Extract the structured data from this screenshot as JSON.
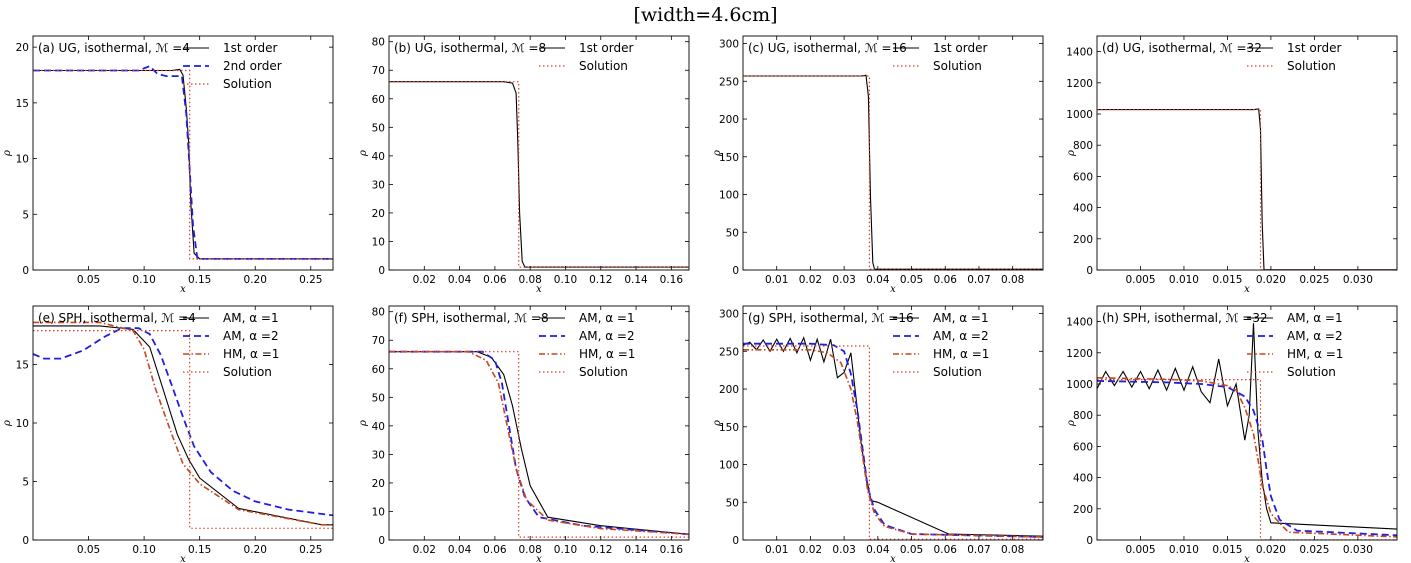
{
  "page_header": "[width=4.6cm]",
  "chart_data": [
    {
      "type": "line",
      "title": "(a) UG, isothermal, ℳ =4",
      "xlabel": "x",
      "ylabel": "ρ",
      "xlim": [
        0,
        0.27
      ],
      "ylim": [
        0,
        21
      ],
      "xticks": [
        0.05,
        0.1,
        0.15,
        0.2,
        0.25
      ],
      "xtick_labels": [
        "0.05",
        "0.10",
        "0.15",
        "0.20",
        "0.25"
      ],
      "yticks": [
        0,
        5,
        10,
        15,
        20
      ],
      "ytick_labels": [
        "0",
        "5",
        "10",
        "15",
        "20"
      ],
      "legend_position": "top-right",
      "series": [
        {
          "name": "1st order",
          "color": "#000000",
          "dash": "solid",
          "x": [
            0,
            0.1,
            0.125,
            0.132,
            0.135,
            0.138,
            0.14,
            0.142,
            0.145,
            0.15,
            0.27
          ],
          "y": [
            17.9,
            17.9,
            17.9,
            18.0,
            17.5,
            14.5,
            11.5,
            6.0,
            1.5,
            1.0,
            1.0
          ]
        },
        {
          "name": "2nd order",
          "color": "#1f1fe0",
          "dash": "dashed",
          "x": [
            0,
            0.095,
            0.105,
            0.112,
            0.12,
            0.128,
            0.134,
            0.138,
            0.141,
            0.144,
            0.148,
            0.27
          ],
          "y": [
            17.9,
            17.9,
            18.3,
            17.6,
            17.4,
            17.4,
            17.4,
            14.0,
            9.0,
            4.0,
            1.0,
            1.0
          ]
        },
        {
          "name": "Solution",
          "color": "#e03c28",
          "dash": "dotted",
          "x": [
            0,
            0.141,
            0.141,
            0.27
          ],
          "y": [
            17.9,
            17.9,
            1.0,
            1.0
          ]
        }
      ]
    },
    {
      "type": "line",
      "title": "(b) UG, isothermal, ℳ =8",
      "xlabel": "x",
      "ylabel": "ρ",
      "xlim": [
        0,
        0.17
      ],
      "ylim": [
        0,
        82
      ],
      "xticks": [
        0.02,
        0.04,
        0.06,
        0.08,
        0.1,
        0.12,
        0.14,
        0.16
      ],
      "xtick_labels": [
        "0.02",
        "0.04",
        "0.06",
        "0.08",
        "0.10",
        "0.12",
        "0.14",
        "0.16"
      ],
      "yticks": [
        0,
        10,
        20,
        30,
        40,
        50,
        60,
        70,
        80
      ],
      "ytick_labels": [
        "0",
        "10",
        "20",
        "30",
        "40",
        "50",
        "60",
        "70",
        "80"
      ],
      "legend_position": "top-right",
      "series": [
        {
          "name": "1st order",
          "color": "#000000",
          "dash": "solid",
          "x": [
            0,
            0.065,
            0.07,
            0.072,
            0.073,
            0.074,
            0.0755,
            0.077,
            0.17
          ],
          "y": [
            66,
            66,
            65.5,
            62,
            45,
            20,
            3,
            1,
            1
          ]
        },
        {
          "name": "Solution",
          "color": "#e03c28",
          "dash": "dotted",
          "x": [
            0,
            0.0735,
            0.0735,
            0.17
          ],
          "y": [
            66,
            66,
            1,
            1
          ]
        }
      ]
    },
    {
      "type": "line",
      "title": "(c) UG, isothermal, ℳ =16",
      "xlabel": "x",
      "ylabel": "ρ",
      "xlim": [
        0,
        0.089
      ],
      "ylim": [
        0,
        310
      ],
      "xticks": [
        0.01,
        0.02,
        0.03,
        0.04,
        0.05,
        0.06,
        0.07,
        0.08
      ],
      "xtick_labels": [
        "0.01",
        "0.02",
        "0.03",
        "0.04",
        "0.05",
        "0.06",
        "0.07",
        "0.08"
      ],
      "yticks": [
        0,
        50,
        100,
        150,
        200,
        250,
        300
      ],
      "ytick_labels": [
        "0",
        "50",
        "100",
        "150",
        "200",
        "250",
        "300"
      ],
      "legend_position": "top-right",
      "series": [
        {
          "name": "1st order",
          "color": "#000000",
          "dash": "solid",
          "x": [
            0,
            0.035,
            0.0365,
            0.0372,
            0.0378,
            0.0385,
            0.039,
            0.089
          ],
          "y": [
            257,
            257,
            258,
            230,
            100,
            10,
            1,
            1
          ]
        },
        {
          "name": "Solution",
          "color": "#e03c28",
          "dash": "dotted",
          "x": [
            0,
            0.0375,
            0.0375,
            0.089
          ],
          "y": [
            257,
            257,
            1,
            1
          ]
        }
      ]
    },
    {
      "type": "line",
      "title": "(d) UG, isothermal, ℳ =32",
      "xlabel": "x",
      "ylabel": "ρ",
      "xlim": [
        0,
        0.0345
      ],
      "ylim": [
        0,
        1500
      ],
      "xticks": [
        0.005,
        0.01,
        0.015,
        0.02,
        0.025,
        0.03
      ],
      "xtick_labels": [
        "0.005",
        "0.010",
        "0.015",
        "0.020",
        "0.025",
        "0.030"
      ],
      "yticks": [
        0,
        200,
        400,
        600,
        800,
        1000,
        1200,
        1400
      ],
      "ytick_labels": [
        "0",
        "200",
        "400",
        "600",
        "800",
        "1000",
        "1200",
        "1400"
      ],
      "legend_position": "top-right",
      "series": [
        {
          "name": "1st order",
          "color": "#000000",
          "dash": "solid",
          "x": [
            0,
            0.018,
            0.0186,
            0.0188,
            0.019,
            0.0192,
            0.0345
          ],
          "y": [
            1028,
            1028,
            1032,
            900,
            300,
            1,
            1
          ]
        },
        {
          "name": "Solution",
          "color": "#e03c28",
          "dash": "dotted",
          "x": [
            0,
            0.0188,
            0.0188,
            0.0345
          ],
          "y": [
            1028,
            1028,
            1,
            1
          ]
        }
      ]
    },
    {
      "type": "line",
      "title": "(e) SPH, isothermal, ℳ =4",
      "xlabel": "x",
      "ylabel": "ρ",
      "xlim": [
        0,
        0.27
      ],
      "ylim": [
        0,
        20
      ],
      "xticks": [
        0.05,
        0.1,
        0.15,
        0.2,
        0.25
      ],
      "xtick_labels": [
        "0.05",
        "0.10",
        "0.15",
        "0.20",
        "0.25"
      ],
      "yticks": [
        0,
        5,
        10,
        15
      ],
      "ytick_labels": [
        "0",
        "5",
        "10",
        "15"
      ],
      "legend_position": "top-right",
      "series": [
        {
          "name": "AM, α =1",
          "color": "#000000",
          "dash": "solid",
          "x": [
            0,
            0.06,
            0.09,
            0.105,
            0.115,
            0.13,
            0.14,
            0.15,
            0.185,
            0.26,
            0.27
          ],
          "y": [
            18.3,
            18.3,
            18.0,
            16.5,
            13.5,
            9.0,
            6.9,
            5.3,
            2.7,
            1.3,
            1.3
          ]
        },
        {
          "name": "AM, α =2",
          "color": "#1f1fe0",
          "dash": "dashed",
          "x": [
            0,
            0.01,
            0.025,
            0.045,
            0.065,
            0.08,
            0.095,
            0.105,
            0.115,
            0.125,
            0.135,
            0.145,
            0.16,
            0.18,
            0.2,
            0.23,
            0.27
          ],
          "y": [
            15.9,
            15.5,
            15.5,
            16.2,
            17.4,
            18.1,
            18.1,
            17.6,
            15.8,
            13.2,
            10.5,
            8.0,
            5.8,
            4.2,
            3.3,
            2.6,
            2.1
          ]
        },
        {
          "name": "HM, α =1",
          "color": "#c8461e",
          "dash": "dashdot",
          "x": [
            0,
            0.06,
            0.09,
            0.1,
            0.11,
            0.125,
            0.135,
            0.15,
            0.185,
            0.26,
            0.27
          ],
          "y": [
            18.6,
            18.6,
            17.9,
            16.3,
            13.0,
            9.0,
            6.5,
            4.8,
            2.6,
            1.3,
            1.3
          ]
        },
        {
          "name": "Solution",
          "color": "#e03c28",
          "dash": "dotted",
          "x": [
            0,
            0.141,
            0.141,
            0.27
          ],
          "y": [
            17.9,
            17.9,
            1.0,
            1.0
          ]
        }
      ]
    },
    {
      "type": "line",
      "title": "(f) SPH, isothermal, ℳ =8",
      "xlabel": "x",
      "ylabel": "ρ",
      "xlim": [
        0,
        0.17
      ],
      "ylim": [
        0,
        82
      ],
      "xticks": [
        0.02,
        0.04,
        0.06,
        0.08,
        0.1,
        0.12,
        0.14,
        0.16
      ],
      "xtick_labels": [
        "0.02",
        "0.04",
        "0.06",
        "0.08",
        "0.10",
        "0.12",
        "0.14",
        "0.16"
      ],
      "yticks": [
        0,
        10,
        20,
        30,
        40,
        50,
        60,
        70,
        80
      ],
      "ytick_labels": [
        "0",
        "10",
        "20",
        "30",
        "40",
        "50",
        "60",
        "70",
        "80"
      ],
      "legend_position": "top-right",
      "series": [
        {
          "name": "AM, α =1",
          "color": "#000000",
          "dash": "solid",
          "x": [
            0,
            0.05,
            0.058,
            0.065,
            0.07,
            0.075,
            0.08,
            0.09,
            0.12,
            0.17
          ],
          "y": [
            66,
            66,
            64,
            58,
            47,
            32,
            19,
            8,
            5,
            2
          ]
        },
        {
          "name": "AM, α =2",
          "color": "#1f1fe0",
          "dash": "dashed",
          "x": [
            0,
            0.053,
            0.06,
            0.064,
            0.068,
            0.072,
            0.077,
            0.085,
            0.11,
            0.17
          ],
          "y": [
            66,
            66,
            63,
            55,
            40,
            25,
            15,
            8,
            5,
            2
          ]
        },
        {
          "name": "HM, α =1",
          "color": "#c8461e",
          "dash": "dashdot",
          "x": [
            0,
            0.045,
            0.055,
            0.062,
            0.067,
            0.072,
            0.078,
            0.09,
            0.12,
            0.17
          ],
          "y": [
            66,
            66,
            63,
            55,
            40,
            25,
            14,
            7,
            4,
            2
          ]
        },
        {
          "name": "Solution",
          "color": "#e03c28",
          "dash": "dotted",
          "x": [
            0,
            0.0735,
            0.0735,
            0.17
          ],
          "y": [
            66,
            66,
            1,
            1
          ]
        }
      ]
    },
    {
      "type": "line",
      "title": "(g) SPH, isothermal, ℳ =16",
      "xlabel": "x",
      "ylabel": "ρ",
      "xlim": [
        0,
        0.089
      ],
      "ylim": [
        0,
        310
      ],
      "xticks": [
        0.01,
        0.02,
        0.03,
        0.04,
        0.05,
        0.06,
        0.07,
        0.08
      ],
      "xtick_labels": [
        "0.01",
        "0.02",
        "0.03",
        "0.04",
        "0.05",
        "0.06",
        "0.07",
        "0.08"
      ],
      "yticks": [
        0,
        50,
        100,
        150,
        200,
        250,
        300
      ],
      "ytick_labels": [
        "0",
        "50",
        "100",
        "150",
        "200",
        "250",
        "300"
      ],
      "legend_position": "top-right",
      "series": [
        {
          "name": "AM, α =1",
          "color": "#000000",
          "dash": "solid",
          "x": [
            0,
            0.002,
            0.004,
            0.006,
            0.008,
            0.01,
            0.012,
            0.014,
            0.016,
            0.018,
            0.02,
            0.022,
            0.024,
            0.026,
            0.028,
            0.03,
            0.032,
            0.034,
            0.035,
            0.0365,
            0.038,
            0.04,
            0.061,
            0.089
          ],
          "y": [
            258,
            262,
            252,
            265,
            250,
            266,
            250,
            267,
            248,
            268,
            238,
            266,
            236,
            266,
            215,
            222,
            248,
            170,
            130,
            85,
            52,
            50,
            8,
            5
          ]
        },
        {
          "name": "AM, α =2",
          "color": "#1f1fe0",
          "dash": "dashed",
          "x": [
            0,
            0.02,
            0.027,
            0.03,
            0.032,
            0.034,
            0.0355,
            0.037,
            0.039,
            0.042,
            0.05,
            0.089
          ],
          "y": [
            260,
            260,
            258,
            250,
            220,
            170,
            120,
            70,
            40,
            20,
            8,
            4
          ]
        },
        {
          "name": "HM, α =1",
          "color": "#c8461e",
          "dash": "dashdot",
          "x": [
            0,
            0.02,
            0.025,
            0.029,
            0.032,
            0.034,
            0.0355,
            0.037,
            0.039,
            0.042,
            0.05,
            0.089
          ],
          "y": [
            252,
            252,
            248,
            235,
            200,
            155,
            110,
            65,
            35,
            18,
            8,
            4
          ]
        },
        {
          "name": "Solution",
          "color": "#e03c28",
          "dash": "dotted",
          "x": [
            0,
            0.0375,
            0.0375,
            0.089
          ],
          "y": [
            257,
            257,
            1,
            1
          ]
        }
      ]
    },
    {
      "type": "line",
      "title": "(h) SPH, isothermal, ℳ =32",
      "xlabel": "x",
      "ylabel": "ρ",
      "xlim": [
        0,
        0.0345
      ],
      "ylim": [
        0,
        1500
      ],
      "xticks": [
        0.005,
        0.01,
        0.015,
        0.02,
        0.025,
        0.03
      ],
      "xtick_labels": [
        "0.005",
        "0.010",
        "0.015",
        "0.020",
        "0.025",
        "0.030"
      ],
      "yticks": [
        0,
        200,
        400,
        600,
        800,
        1000,
        1200,
        1400
      ],
      "ytick_labels": [
        "0",
        "200",
        "400",
        "600",
        "800",
        "1000",
        "1200",
        "1400"
      ],
      "legend_position": "top-right",
      "series": [
        {
          "name": "AM, α =1",
          "color": "#000000",
          "dash": "solid",
          "x": [
            0,
            0.001,
            0.002,
            0.003,
            0.004,
            0.005,
            0.006,
            0.007,
            0.008,
            0.009,
            0.01,
            0.011,
            0.012,
            0.013,
            0.014,
            0.015,
            0.016,
            0.017,
            0.0175,
            0.018,
            0.0185,
            0.019,
            0.0195,
            0.02,
            0.0345
          ],
          "y": [
            970,
            1080,
            990,
            1080,
            980,
            1080,
            970,
            1090,
            960,
            1100,
            960,
            1110,
            950,
            880,
            1160,
            860,
            1000,
            640,
            800,
            1390,
            700,
            380,
            200,
            110,
            70
          ]
        },
        {
          "name": "AM, α =2",
          "color": "#1f1fe0",
          "dash": "dashed",
          "x": [
            0,
            0.008,
            0.012,
            0.015,
            0.017,
            0.018,
            0.019,
            0.0195,
            0.02,
            0.021,
            0.023,
            0.0345
          ],
          "y": [
            1020,
            1010,
            1000,
            980,
            920,
            830,
            650,
            450,
            280,
            130,
            60,
            30
          ]
        },
        {
          "name": "HM, α =1",
          "color": "#c8461e",
          "dash": "dashdot",
          "x": [
            0,
            0.008,
            0.012,
            0.015,
            0.016,
            0.017,
            0.018,
            0.0185,
            0.019,
            0.02,
            0.022,
            0.0345
          ],
          "y": [
            1040,
            1030,
            1020,
            990,
            960,
            850,
            680,
            520,
            350,
            170,
            50,
            20
          ]
        },
        {
          "name": "Solution",
          "color": "#e03c28",
          "dash": "dotted",
          "x": [
            0,
            0.0188,
            0.0188,
            0.0345
          ],
          "y": [
            1028,
            1028,
            1,
            1
          ]
        }
      ]
    }
  ]
}
